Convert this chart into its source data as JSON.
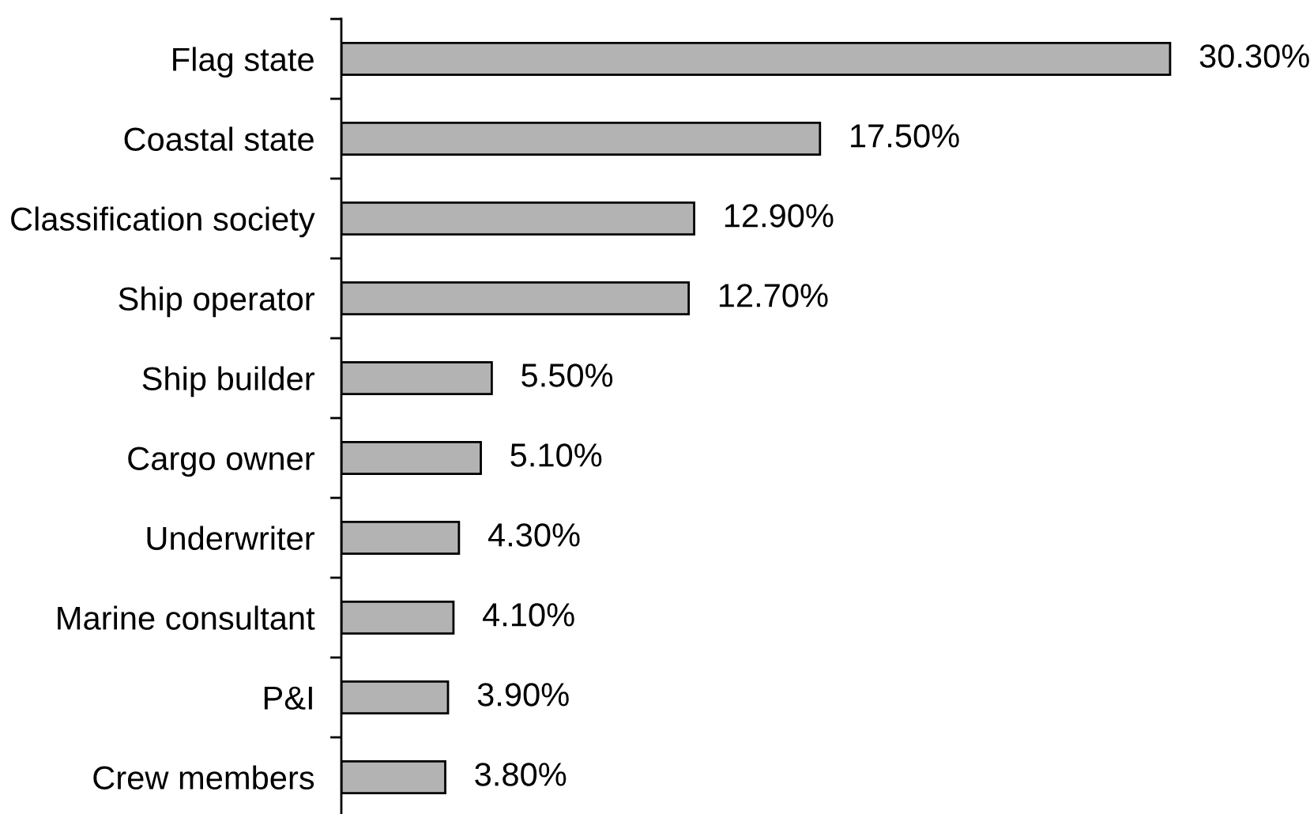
{
  "chart_data": {
    "type": "bar",
    "orientation": "horizontal",
    "categories": [
      "Flag state",
      "Coastal state",
      "Classification society",
      "Ship operator",
      "Ship builder",
      "Cargo owner",
      "Underwriter",
      "Marine consultant",
      "P&I",
      "Crew members"
    ],
    "values": [
      30.3,
      17.5,
      12.9,
      12.7,
      5.5,
      5.1,
      4.3,
      4.1,
      3.9,
      3.8
    ],
    "value_labels": [
      "30.30%",
      "17.50%",
      "12.90%",
      "12.70%",
      "5.50%",
      "5.10%",
      "4.30%",
      "4.10%",
      "3.90%",
      "3.80%"
    ],
    "color": "#b3b3b3"
  }
}
